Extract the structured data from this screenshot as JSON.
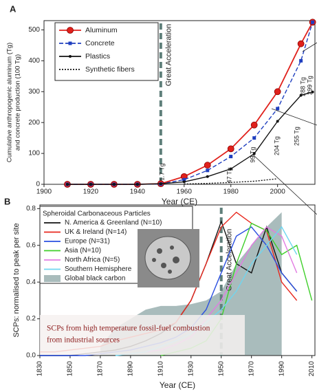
{
  "chart_data": [
    {
      "type": "line",
      "panel_label": "A",
      "ylabel": [
        "Cumulative anthropogenic aluminum (Tg)",
        "and concrete production (100 Tg)"
      ],
      "xlabel": "Year (CE)",
      "x": [
        1910,
        1920,
        1930,
        1940,
        1950,
        1960,
        1970,
        1980,
        1990,
        2000,
        2010,
        2015
      ],
      "series": [
        {
          "name": "Aluminum",
          "color": "#e0201b",
          "style": "solid",
          "marker": "circle",
          "values": [
            0,
            0,
            0,
            0,
            2,
            25,
            62,
            115,
            192,
            300,
            455,
            525
          ]
        },
        {
          "name": "Concrete",
          "color": "#1f3fbf",
          "style": "dashed",
          "marker": "square",
          "values": [
            0,
            0,
            0,
            0,
            1,
            15,
            45,
            90,
            150,
            245,
            400,
            525
          ]
        },
        {
          "name": "Plastics",
          "color": "#111111",
          "style": "solid",
          "marker": "dot",
          "values": [
            0,
            0,
            0,
            0,
            1.7,
            8,
            25,
            50,
            99,
            204,
            288,
            299
          ]
        },
        {
          "name": "Synthetic fibers",
          "color": "#111111",
          "style": "dotted",
          "marker": "none",
          "values": [
            null,
            null,
            null,
            null,
            null,
            1,
            3,
            6,
            10,
            18,
            null,
            null
          ]
        }
      ],
      "great_acceleration": {
        "label": "Great Acceleration",
        "x": 1950,
        "color": "#5f7f7a"
      },
      "annotations": [
        "1.7 Tg",
        "47 Tg",
        "99 Tg",
        "204 Tg",
        "255 Tg",
        "288 Tg",
        "299 Tg"
      ],
      "xlim": [
        1900,
        2016
      ],
      "ylim": [
        0,
        530
      ],
      "xticks": [
        1900,
        1920,
        1940,
        1960,
        1980,
        2000
      ],
      "yticks": [
        0,
        100,
        200,
        300,
        400,
        500
      ],
      "legend": "upper left"
    },
    {
      "type": "line",
      "panel_label": "B",
      "ylabel": [
        "SCPs: normalised to peak per site"
      ],
      "xlabel": "Year (CE)",
      "legend_title": "Spheroidal Carbonaceous Particles",
      "x": [
        1830,
        1840,
        1850,
        1860,
        1870,
        1880,
        1890,
        1900,
        1910,
        1920,
        1930,
        1940,
        1950,
        1960,
        1970,
        1980,
        1990,
        2000,
        2010
      ],
      "series": [
        {
          "name": "N. America & Greenland (N=10)",
          "color": "#111111",
          "style": "solid",
          "marker": "none",
          "values": [
            0,
            0,
            0,
            0.01,
            0.02,
            0.03,
            0.05,
            0.08,
            0.12,
            0.18,
            0.3,
            0.5,
            0.73,
            0.5,
            0.45,
            0.7,
            0.45,
            0.35,
            null
          ]
        },
        {
          "name": "UK & Ireland (N=14)",
          "color": "#e8281e",
          "style": "solid",
          "marker": "none",
          "values": [
            0.02,
            0.02,
            0.03,
            0.04,
            0.05,
            0.08,
            0.1,
            0.12,
            0.14,
            0.18,
            0.3,
            0.5,
            0.7,
            0.78,
            0.72,
            0.68,
            0.4,
            0.3,
            null
          ]
        },
        {
          "name": "Europe (N=31)",
          "color": "#2a4fe0",
          "style": "solid",
          "marker": "none",
          "values": [
            0,
            0,
            0,
            0,
            0.01,
            0.02,
            0.03,
            0.05,
            0.07,
            0.1,
            0.15,
            0.25,
            0.45,
            0.65,
            0.7,
            0.6,
            0.45,
            0.35,
            null
          ]
        },
        {
          "name": "Asia (N=10)",
          "color": "#3fcf2a",
          "style": "solid",
          "marker": "none",
          "values": [
            null,
            null,
            null,
            null,
            null,
            null,
            null,
            null,
            0,
            0.02,
            0.04,
            0.08,
            0.2,
            0.5,
            0.72,
            0.68,
            0.55,
            0.6,
            0.3
          ]
        },
        {
          "name": "North Africa (N=5)",
          "color": "#e27be2",
          "style": "solid",
          "marker": "none",
          "values": [
            null,
            null,
            null,
            null,
            null,
            null,
            null,
            0.02,
            0.03,
            0.06,
            0.1,
            0.2,
            0.3,
            0.45,
            0.6,
            0.7,
            0.65,
            0.45,
            null
          ]
        },
        {
          "name": "Southern Hemisphere",
          "color": "#6fd6f0",
          "style": "solid",
          "marker": "none",
          "values": [
            null,
            null,
            null,
            null,
            null,
            0,
            0.01,
            0.02,
            0.05,
            0.08,
            0.12,
            0.18,
            0.25,
            0.35,
            0.5,
            0.6,
            0.7,
            0.55,
            null
          ]
        },
        {
          "name": "Global black carbon",
          "color": "#a9bcbc",
          "style": "area",
          "marker": "none",
          "values": [
            null,
            null,
            null,
            null,
            0.05,
            0.15,
            0.2,
            0.25,
            0.27,
            0.27,
            0.28,
            0.3,
            0.35,
            0.5,
            0.6,
            0.7,
            0.78,
            null,
            null
          ]
        }
      ],
      "great_acceleration": {
        "label": "Great Acceleration",
        "x": 1950,
        "color": "#5f7f7a"
      },
      "note": [
        "SCPs from high temperature fossil-fuel combustion",
        "from industrial sources"
      ],
      "xlim": [
        1830,
        2012
      ],
      "ylim": [
        0,
        0.82
      ],
      "xticks": [
        1830,
        1850,
        1870,
        1890,
        1910,
        1930,
        1950,
        1970,
        1990,
        2010
      ],
      "yticks": [
        {
          "value": 0,
          "label": "0.0"
        },
        0.2,
        0.4,
        0.6,
        0.8
      ],
      "legend": "upper left"
    }
  ]
}
